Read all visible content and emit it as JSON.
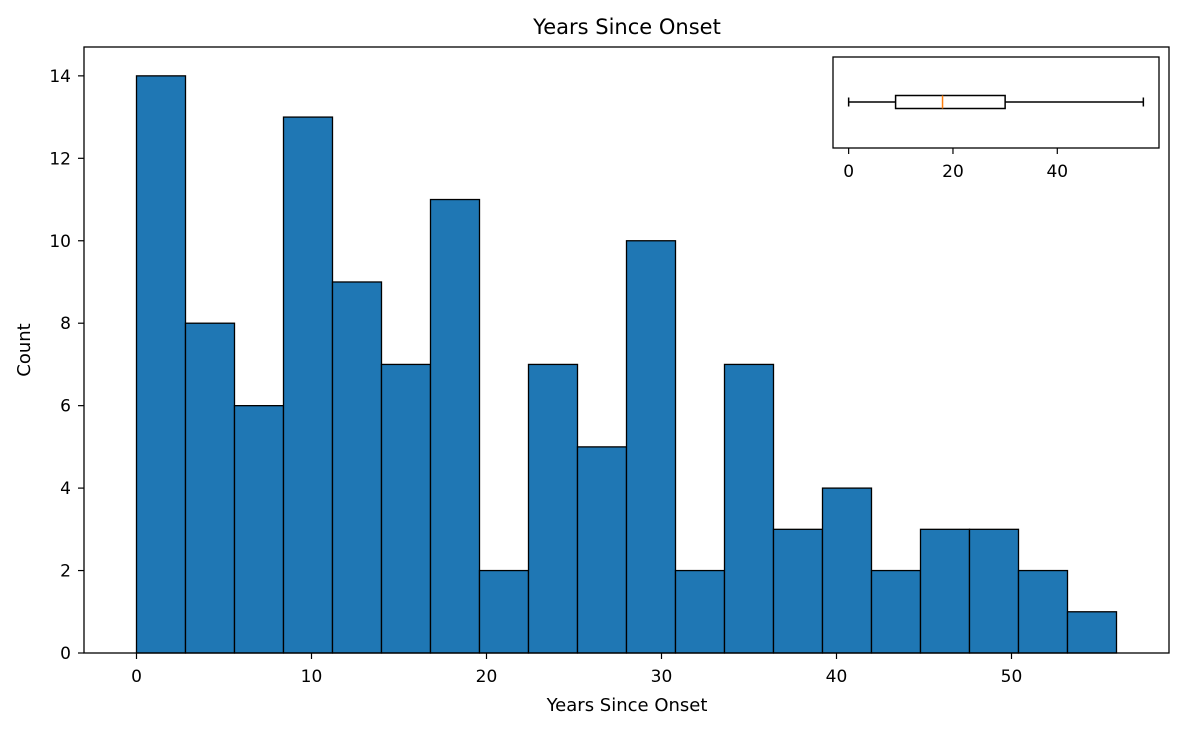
{
  "chart_data": [
    {
      "type": "bar",
      "subtype": "histogram",
      "title": "Years Since Onset",
      "xlabel": "Years Since Onset",
      "ylabel": "Count",
      "bin_start": 0,
      "bin_width": 2.8,
      "values": [
        14,
        8,
        6,
        13,
        9,
        7,
        11,
        2,
        7,
        5,
        10,
        2,
        7,
        3,
        4,
        2,
        3,
        3,
        2,
        1
      ],
      "xlim": [
        -3,
        59
      ],
      "ylim": [
        0,
        14.7
      ],
      "x_ticks": [
        0,
        10,
        20,
        30,
        40,
        50
      ],
      "y_ticks": [
        0,
        2,
        4,
        6,
        8,
        10,
        12,
        14
      ],
      "bar_color": "#1f77b4",
      "edge_color": "#000000",
      "grid": false
    },
    {
      "type": "boxplot",
      "orientation": "horizontal",
      "placement": "inset top-right",
      "stats": {
        "min": 0,
        "q1": 9,
        "median": 18,
        "q3": 30,
        "max": 56.5
      },
      "xlim": [
        -3,
        59.5
      ],
      "x_ticks": [
        0,
        20,
        40
      ],
      "median_color": "#ff7f0e",
      "grid": false
    }
  ]
}
